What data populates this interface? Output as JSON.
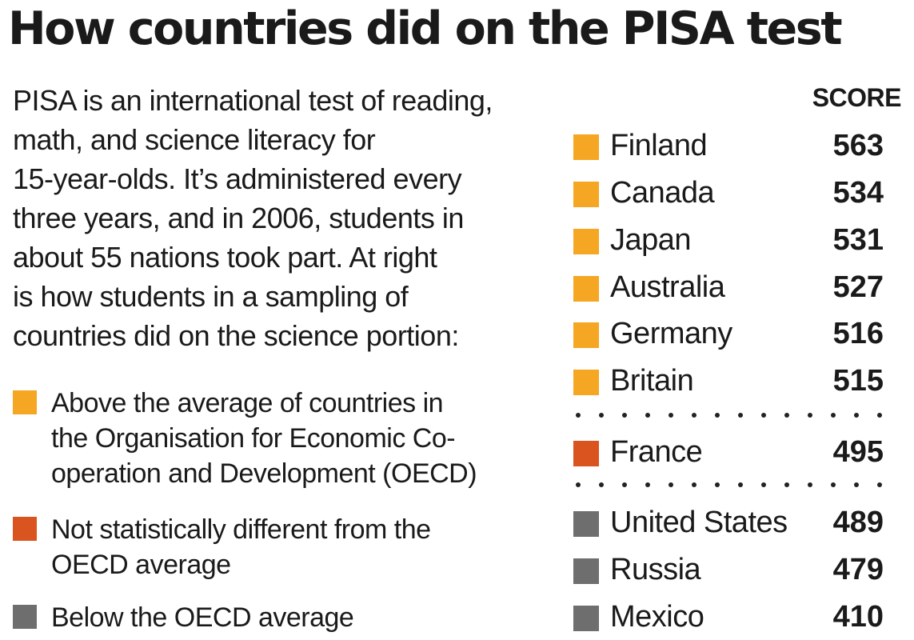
{
  "title": "How countries did on the PISA test",
  "intro_lines": [
    "PISA is an international test of reading,",
    "math, and science literacy for",
    "15-year-olds. It’s administered every",
    "three years, and in 2006, students in",
    "about 55 nations took part. At right",
    "is how students in a sampling of",
    "countries did on the science portion:"
  ],
  "colors": {
    "above": "#f5a623",
    "not_different": "#d9541e",
    "below": "#6e6e6e"
  },
  "legend": [
    {
      "category": "above",
      "lines": [
        "Above the average of countries in",
        "the Organisation for Economic Co-",
        "operation and Development (OECD)"
      ]
    },
    {
      "category": "not_different",
      "lines": [
        "Not statistically different from the",
        "OECD average"
      ]
    },
    {
      "category": "below",
      "lines": [
        "Below the OECD average"
      ]
    }
  ],
  "chart_data": {
    "type": "table",
    "column_header": "SCORE",
    "rows": [
      {
        "country": "Finland",
        "score": 563,
        "category": "above"
      },
      {
        "country": "Canada",
        "score": 534,
        "category": "above"
      },
      {
        "country": "Japan",
        "score": 531,
        "category": "above"
      },
      {
        "country": "Australia",
        "score": 527,
        "category": "above"
      },
      {
        "country": "Germany",
        "score": 516,
        "category": "above"
      },
      {
        "country": "Britain",
        "score": 515,
        "category": "above"
      },
      {
        "country": "France",
        "score": 495,
        "category": "not_different"
      },
      {
        "country": "United States",
        "score": 489,
        "category": "below"
      },
      {
        "country": "Russia",
        "score": 479,
        "category": "below"
      },
      {
        "country": "Mexico",
        "score": 410,
        "category": "below"
      }
    ]
  }
}
